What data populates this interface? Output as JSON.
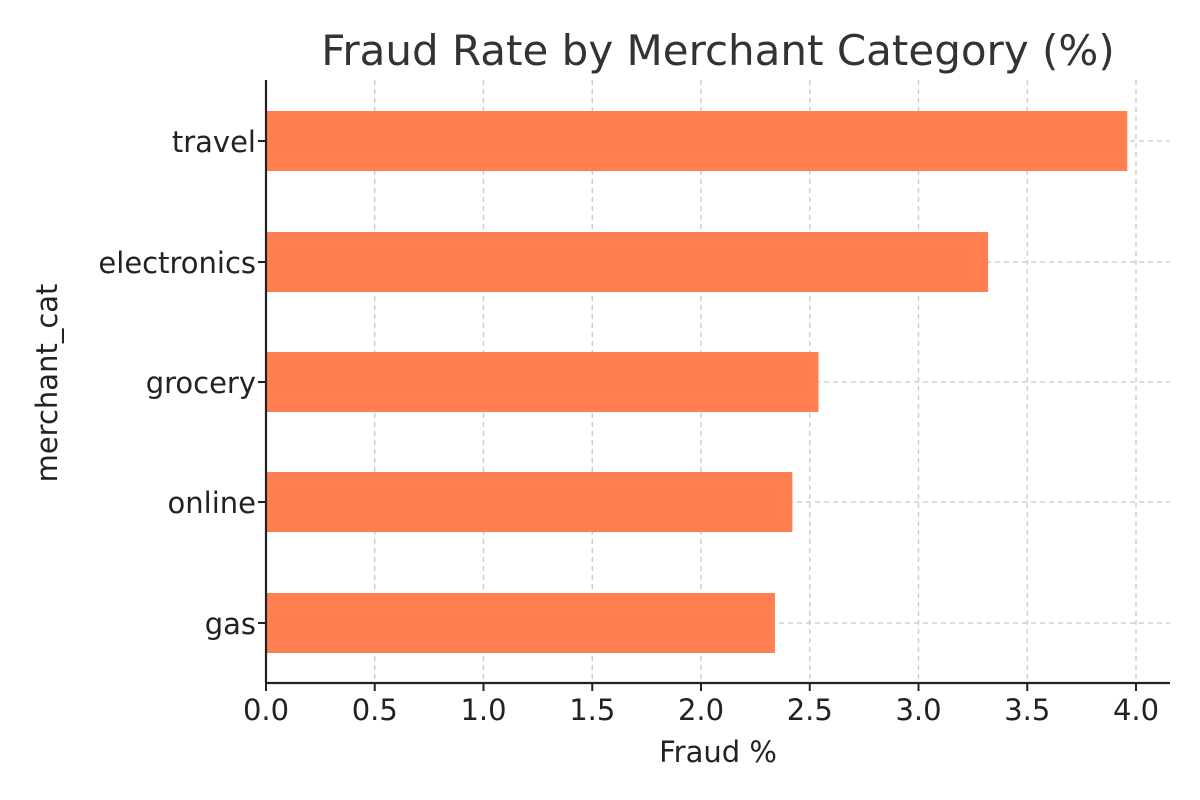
{
  "chart_data": {
    "type": "bar",
    "orientation": "horizontal",
    "title": "Fraud Rate by Merchant Category (%)",
    "xlabel": "Fraud %",
    "ylabel": "merchant_cat",
    "categories": [
      "travel",
      "electronics",
      "grocery",
      "online",
      "gas"
    ],
    "values": [
      3.96,
      3.32,
      2.54,
      2.42,
      2.34
    ],
    "xlim": [
      0,
      4.15
    ],
    "xticks": [
      "0.0",
      "0.5",
      "1.0",
      "1.5",
      "2.0",
      "2.5",
      "3.0",
      "3.5",
      "4.0"
    ],
    "grid": true,
    "bar_color": "#ff7f50"
  }
}
